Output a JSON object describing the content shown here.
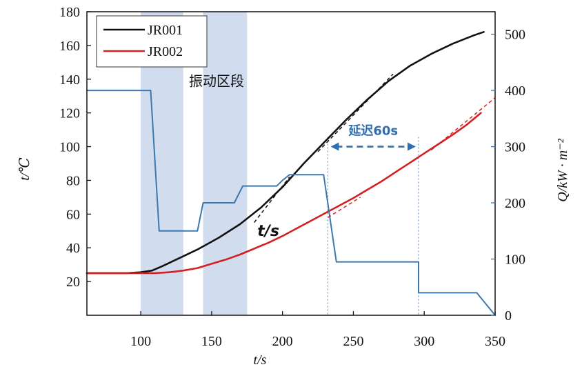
{
  "chart_data": {
    "type": "line",
    "xlabel": "t/s",
    "ylabel": "t/℃",
    "y2label": "Q/kW · m⁻²",
    "xlim": [
      62,
      350
    ],
    "ylim": [
      0,
      180
    ],
    "y2lim": [
      0,
      540
    ],
    "x_ticks": [
      100,
      150,
      200,
      250,
      300,
      350
    ],
    "y_ticks": [
      20,
      40,
      60,
      80,
      100,
      120,
      140,
      160,
      180
    ],
    "y2_ticks": [
      0,
      100,
      200,
      300,
      400,
      500
    ],
    "grid": false,
    "legend_position": "top-left",
    "colors": {
      "JR001": "#111111",
      "JR002": "#d42020",
      "heat_flux": "#3b78b0",
      "band": "#c9d6ec",
      "delay": "#2f6db5"
    },
    "series": [
      {
        "name": "JR001",
        "axis": "left",
        "x": [
          62,
          90,
          100,
          108,
          115,
          125,
          140,
          155,
          170,
          185,
          200,
          215,
          230,
          245,
          260,
          275,
          290,
          305,
          320,
          335,
          342
        ],
        "y": [
          25,
          25,
          25.5,
          26.5,
          29,
          33,
          39,
          46,
          54,
          64,
          76,
          90,
          103,
          116,
          128,
          139,
          148,
          155,
          161,
          166,
          168
        ]
      },
      {
        "name": "JR002",
        "axis": "left",
        "x": [
          62,
          100,
          110,
          120,
          130,
          140,
          150,
          160,
          170,
          180,
          190,
          200,
          210,
          220,
          230,
          240,
          250,
          260,
          270,
          280,
          290,
          300,
          310,
          320,
          330,
          340
        ],
        "y": [
          25,
          25,
          25,
          25.5,
          26.5,
          28,
          30.5,
          33,
          36,
          39.5,
          43,
          47,
          51.5,
          56,
          60.5,
          65,
          69.5,
          74.5,
          79.5,
          85,
          90.5,
          96,
          101.5,
          107,
          113,
          120
        ]
      },
      {
        "name": "",
        "axis": "right",
        "x": [
          62,
          107,
          113,
          140,
          144,
          152,
          166,
          172,
          186,
          196,
          200,
          205,
          220,
          229,
          238,
          242,
          275,
          296,
          296,
          337,
          350
        ],
        "y": [
          400,
          400,
          150,
          150,
          200,
          200,
          200,
          230,
          230,
          230,
          240,
          250,
          250,
          250,
          95,
          95,
          95,
          95,
          40,
          40,
          0
        ]
      }
    ],
    "tangent_lines": [
      {
        "color": "#111111",
        "x": [
          180,
          205
        ],
        "y": [
          55,
          82
        ]
      },
      {
        "color": "#111111",
        "x": [
          225,
          278
        ],
        "y": [
          97,
          143
        ]
      },
      {
        "color": "#d42020",
        "x": [
          232,
          255
        ],
        "y": [
          58,
          70
        ]
      },
      {
        "color": "#d42020",
        "x": [
          305,
          350
        ],
        "y": [
          98,
          129
        ]
      }
    ],
    "shaded_bands": [
      [
        100,
        130
      ],
      [
        144,
        175
      ]
    ],
    "reference_lines_x": [
      232,
      296
    ],
    "annotations": [
      {
        "text": "振动区段",
        "x": 134,
        "y": 136
      },
      {
        "text": "延迟60s",
        "x": 264,
        "y": 107
      },
      {
        "text": "t/s",
        "x": 190,
        "y": 47
      }
    ],
    "delay_arrow": {
      "x": [
        232,
        296
      ],
      "y": 100
    }
  }
}
